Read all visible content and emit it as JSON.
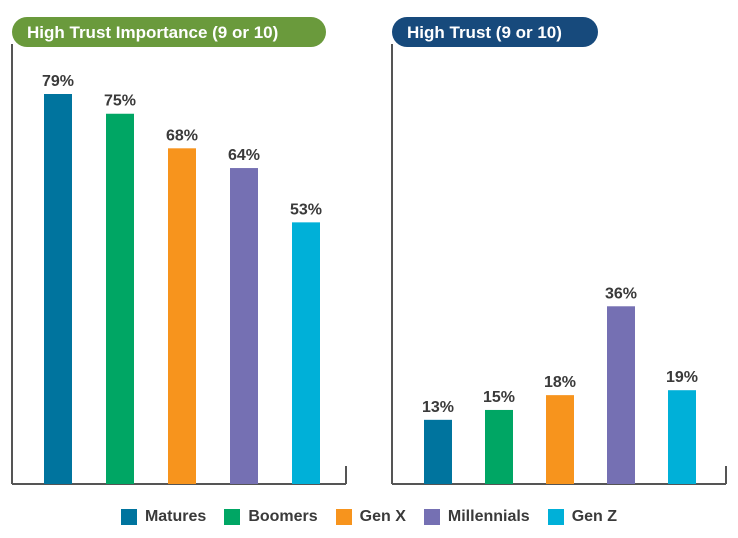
{
  "chart_data": [
    {
      "type": "bar",
      "title": "High Trust Importance (9 or 10)",
      "title_color": "#6a9a3c",
      "categories": [
        "Matures",
        "Boomers",
        "Gen X",
        "Millennials",
        "Gen Z"
      ],
      "values": [
        79,
        75,
        68,
        64,
        53
      ],
      "value_labels": [
        "79%",
        "75%",
        "68%",
        "64%",
        "53%"
      ],
      "ylim": [
        0,
        100
      ],
      "xlabel": "",
      "ylabel": "",
      "grid": false
    },
    {
      "type": "bar",
      "title": "High Trust (9 or 10)",
      "title_color": "#174a7c",
      "categories": [
        "Matures",
        "Boomers",
        "Gen X",
        "Millennials",
        "Gen Z"
      ],
      "values": [
        13,
        15,
        18,
        36,
        19
      ],
      "value_labels": [
        "13%",
        "15%",
        "18%",
        "36%",
        "19%"
      ],
      "ylim": [
        0,
        100
      ],
      "xlabel": "",
      "ylabel": "",
      "grid": false
    }
  ],
  "legend": [
    {
      "label": "Matures",
      "color": "#00749e"
    },
    {
      "label": "Boomers",
      "color": "#00a664"
    },
    {
      "label": "Gen X",
      "color": "#f7941d"
    },
    {
      "label": "Millennials",
      "color": "#7570b3"
    },
    {
      "label": "Gen Z",
      "color": "#00b0d8"
    }
  ]
}
